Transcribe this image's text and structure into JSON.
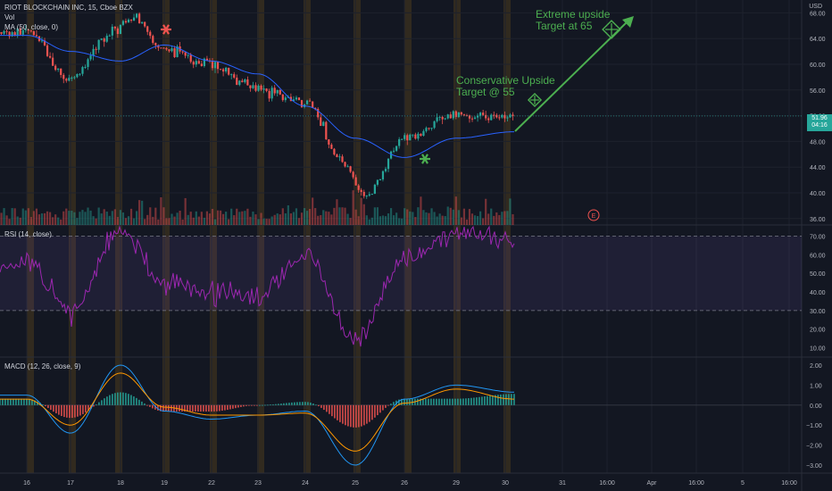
{
  "header": {
    "symbol": "RIOT BLOCKCHAIN INC, 15, Cboe BZX",
    "vol_label": "Vol",
    "ma_label": "MA (50, close, 0)",
    "currency": "USD"
  },
  "rsi_label": "RSI (14, close)",
  "macd_label": "MACD (12, 26, close, 9)",
  "annotations": {
    "conservative_line1": "Conservative Upside",
    "conservative_line2": "Target @ 55",
    "extreme_line1": "Extreme upside",
    "extreme_line2": "Target at 65",
    "earnings_marker": "E"
  },
  "last_price": {
    "value": "51.96",
    "countdown": "04:16"
  },
  "colors": {
    "background": "#131722",
    "up": "#26a69a",
    "down": "#ef5350",
    "ma": "#2962ff",
    "rsi": "#9c27b0",
    "macd": "#2196f3",
    "signal": "#ff9800",
    "annotation": "#4caf50",
    "highlight_band": "#4a3a1e"
  },
  "chart_data": [
    {
      "type": "candlestick",
      "title": "RIOT BLOCKCHAIN INC, 15, Cboe BZX",
      "price_axis_ticks": [
        36.0,
        40.0,
        44.0,
        48.0,
        52.0,
        56.0,
        60.0,
        64.0,
        68.0
      ],
      "ylim": [
        35.0,
        70.0
      ],
      "x_ticks": [
        "16",
        "17",
        "18",
        "19",
        "22",
        "23",
        "24",
        "25",
        "26",
        "29",
        "30",
        "31",
        "16:00",
        "Apr",
        "16:00",
        "5",
        "16:00"
      ],
      "path_keypoints": [
        {
          "x": "16",
          "price": 65.0
        },
        {
          "x": "17",
          "price": 57.5
        },
        {
          "x": "18",
          "price": 65.0
        },
        {
          "x": "18",
          "price": 67.5
        },
        {
          "x": "19",
          "price": 62.5
        },
        {
          "x": "22",
          "price": 60.0
        },
        {
          "x": "23",
          "price": 56.0
        },
        {
          "x": "24",
          "price": 54.0
        },
        {
          "x": "25",
          "price": 44.0
        },
        {
          "x": "25",
          "price": 39.5
        },
        {
          "x": "26",
          "price": 48.5
        },
        {
          "x": "29",
          "price": 52.0
        },
        {
          "x": "30",
          "price": 51.96
        }
      ],
      "ma_keypoints": [
        {
          "x": "16",
          "value": 64.5
        },
        {
          "x": "17",
          "value": 62.0
        },
        {
          "x": "18",
          "value": 60.5
        },
        {
          "x": "19",
          "value": 63.0
        },
        {
          "x": "22",
          "value": 60.5
        },
        {
          "x": "23",
          "value": 58.5
        },
        {
          "x": "24",
          "value": 53.5
        },
        {
          "x": "25",
          "value": 48.5
        },
        {
          "x": "26",
          "value": 45.5
        },
        {
          "x": "29",
          "value": 48.5
        },
        {
          "x": "30",
          "value": 49.5
        }
      ],
      "last_price": 51.96
    },
    {
      "type": "line",
      "title": "RSI (14, close)",
      "axis_ticks": [
        10.0,
        20.0,
        30.0,
        40.0,
        50.0,
        60.0,
        70.0
      ],
      "ylim": [
        5,
        76
      ],
      "bands": [
        30.0,
        70.0
      ],
      "keypoints": [
        {
          "x": "16",
          "value": 55
        },
        {
          "x": "17",
          "value": 30
        },
        {
          "x": "18",
          "value": 72
        },
        {
          "x": "19",
          "value": 45
        },
        {
          "x": "22",
          "value": 40
        },
        {
          "x": "23",
          "value": 37
        },
        {
          "x": "24",
          "value": 60
        },
        {
          "x": "25",
          "value": 13
        },
        {
          "x": "26",
          "value": 58
        },
        {
          "x": "29",
          "value": 72
        },
        {
          "x": "30",
          "value": 66
        }
      ]
    },
    {
      "type": "line",
      "title": "MACD (12, 26, close, 9)",
      "axis_ticks": [
        -3.0,
        -2.0,
        -1.0,
        0.0,
        1.0,
        2.0
      ],
      "ylim": [
        -3.4,
        2.4
      ],
      "keypoints": [
        {
          "x": "16",
          "macd": 0.5,
          "signal": 0.3
        },
        {
          "x": "17",
          "macd": -1.4,
          "signal": -1.0
        },
        {
          "x": "18",
          "macd": 2.0,
          "signal": 1.6
        },
        {
          "x": "19",
          "macd": -0.3,
          "signal": -0.1
        },
        {
          "x": "22",
          "macd": -0.7,
          "signal": -0.5
        },
        {
          "x": "23",
          "macd": -0.5,
          "signal": -0.5
        },
        {
          "x": "24",
          "macd": -0.3,
          "signal": -0.4
        },
        {
          "x": "25",
          "macd": -3.0,
          "signal": -2.3
        },
        {
          "x": "26",
          "macd": 0.3,
          "signal": 0.1
        },
        {
          "x": "29",
          "macd": 1.0,
          "signal": 0.8
        },
        {
          "x": "30",
          "macd": 0.65,
          "signal": 0.3
        }
      ]
    }
  ]
}
